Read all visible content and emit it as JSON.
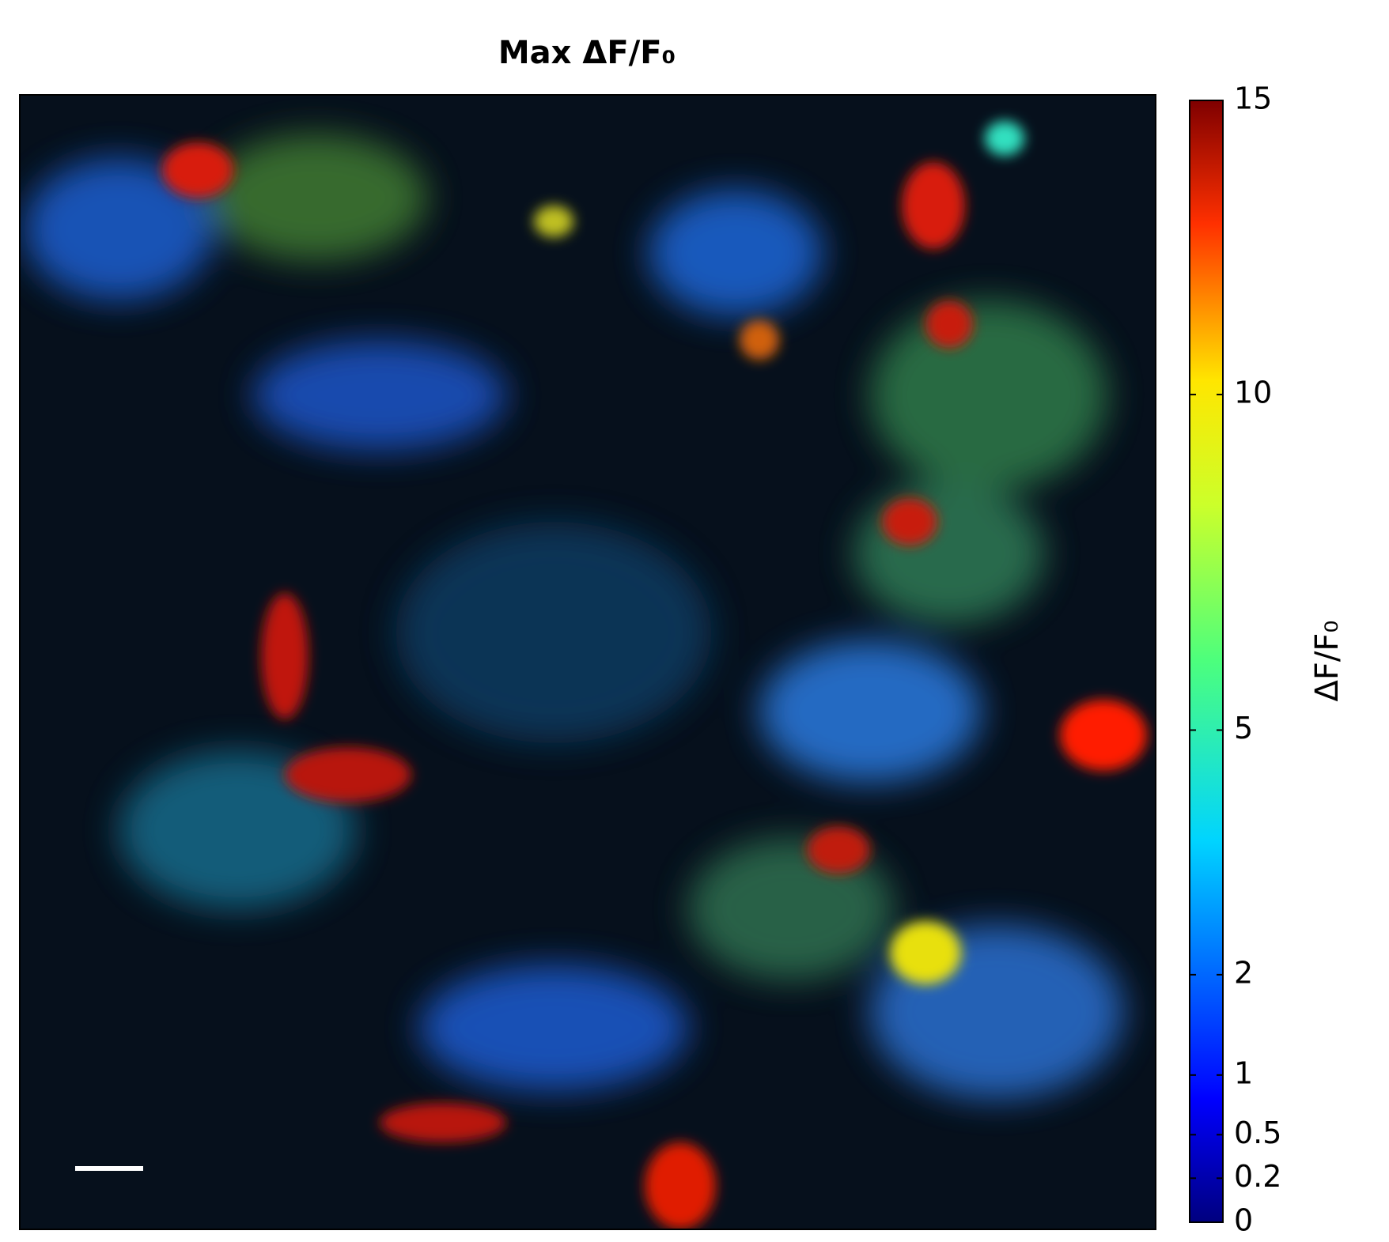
{
  "chart_data": {
    "type": "image",
    "title": "Max ΔF/F₀",
    "colorbar_label": "ΔF/F₀",
    "colormap": "jet",
    "clim": [
      0,
      15
    ],
    "cticks": [
      0,
      0.2,
      0.5,
      1,
      2,
      5,
      10,
      15
    ],
    "cscale": "power",
    "cscale_exponent": 0.75
  }
}
